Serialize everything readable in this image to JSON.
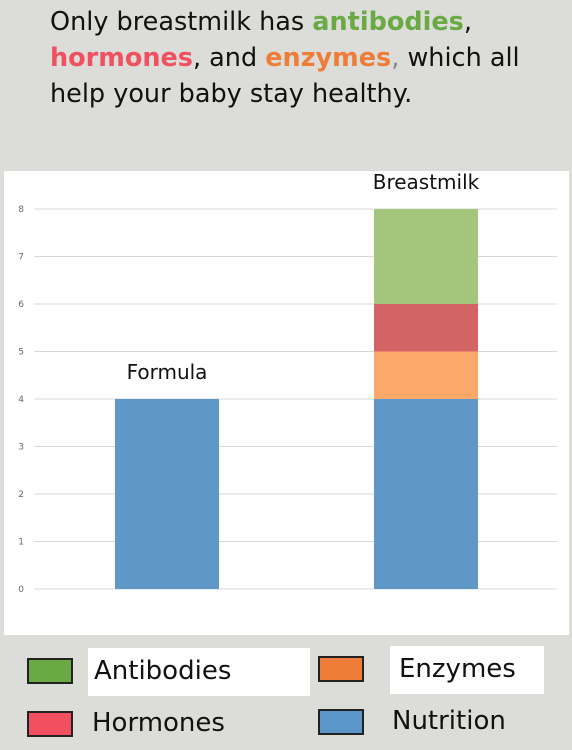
{
  "headline": {
    "part1": "Only breastmilk has ",
    "antibodies": "antibodies",
    "part2": ",",
    "hormones": "hormones",
    "part3": ", and ",
    "enzymes": "enzymes",
    "part4": ",",
    "part5": " which all help your baby stay healthy."
  },
  "colors": {
    "antibodies": "#6aaa45",
    "hormones": "#f0505f",
    "enzymes": "#ee7d3a",
    "nutrition": "#5b96c8"
  },
  "chart_data": {
    "type": "bar",
    "stacked": true,
    "categories": [
      "Formula",
      "Breastmilk"
    ],
    "series": [
      {
        "name": "Nutrition",
        "values": [
          4,
          4
        ],
        "color": "#5f97c6"
      },
      {
        "name": "Enzymes",
        "values": [
          0,
          1
        ],
        "color": "#fba86a"
      },
      {
        "name": "Hormones",
        "values": [
          0,
          1
        ],
        "color": "#d36466"
      },
      {
        "name": "Antibodies",
        "values": [
          0,
          2
        ],
        "color": "#a4c57c"
      }
    ],
    "yticks": [
      0,
      1,
      2,
      3,
      4,
      5,
      6,
      7,
      8
    ],
    "ylim": [
      0,
      8
    ],
    "grid": true,
    "title": "",
    "xlabel": "",
    "ylabel": ""
  },
  "legend": [
    {
      "label": "Antibodies",
      "color": "#6aaa45"
    },
    {
      "label": "Enzymes",
      "color": "#ee7d3a"
    },
    {
      "label": "Hormones",
      "color": "#f0505f"
    },
    {
      "label": "Nutrition",
      "color": "#5b96c8"
    }
  ]
}
